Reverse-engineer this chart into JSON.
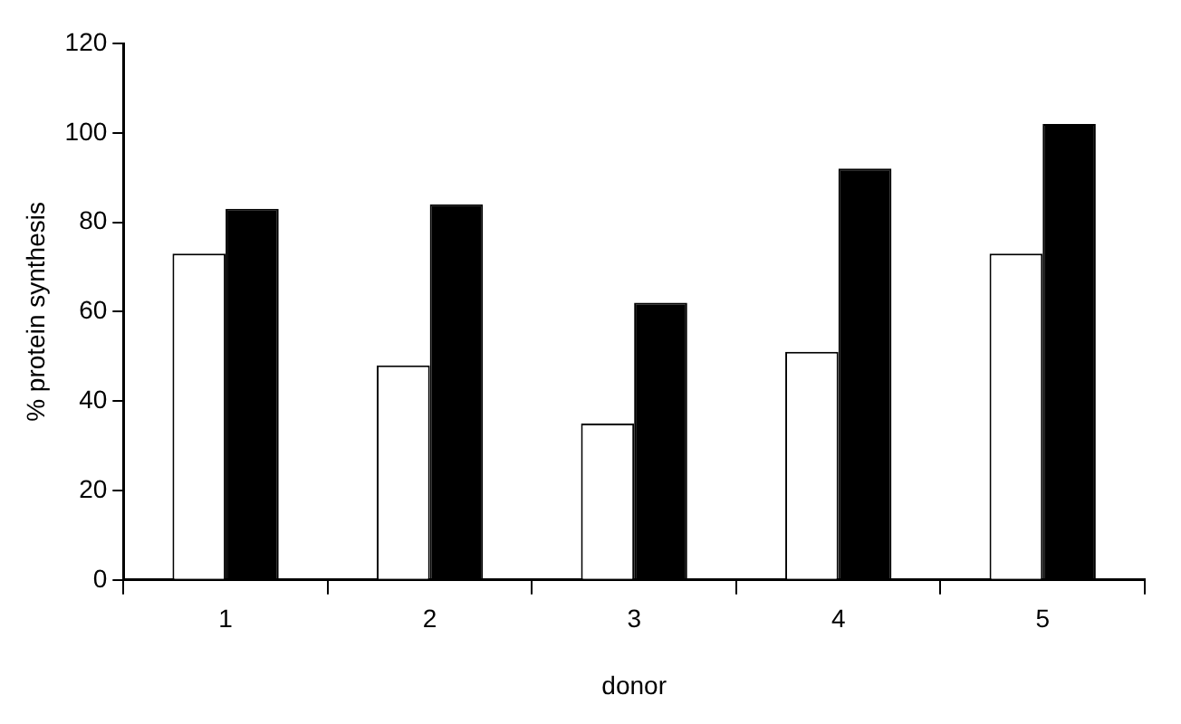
{
  "chart_data": {
    "type": "bar",
    "xlabel": "donor",
    "ylabel": "% protein synthesis",
    "categories": [
      "1",
      "2",
      "3",
      "4",
      "5"
    ],
    "series": [
      {
        "color": "#ffffff",
        "values": [
          73,
          48,
          35,
          51,
          73
        ]
      },
      {
        "color": "#000000",
        "values": [
          83,
          84,
          62,
          92,
          102
        ]
      }
    ],
    "ylim": [
      0,
      120
    ],
    "yticks": [
      0,
      20,
      40,
      60,
      80,
      100,
      120
    ],
    "grid": false,
    "legend": false
  }
}
